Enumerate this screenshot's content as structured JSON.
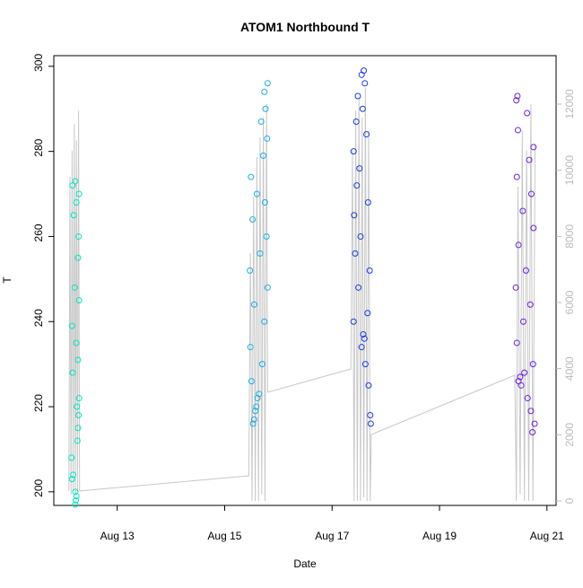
{
  "chart_data": {
    "type": "scatter",
    "title": "ATOM1 Northbound T",
    "x_label": "Date",
    "y_label": "T",
    "xlim": [
      11.82,
      21.17
    ],
    "xticks": [
      {
        "value": 13,
        "label": "Aug 13"
      },
      {
        "value": 15,
        "label": "Aug 15"
      },
      {
        "value": 17,
        "label": "Aug 17"
      },
      {
        "value": 19,
        "label": "Aug 19"
      },
      {
        "value": 21,
        "label": "Aug 21"
      }
    ],
    "ylim": [
      196.8,
      302.5
    ],
    "yticks": [
      200,
      220,
      240,
      260,
      280,
      300
    ],
    "y2lim": [
      -136,
      13466
    ],
    "y2ticks": [
      0,
      2000,
      4000,
      6000,
      8000,
      10000,
      12000
    ],
    "series": [
      {
        "color": "#00e6c0",
        "x": [
          12.22,
          12.23,
          12.24,
          12.22,
          12.16,
          12.18,
          12.15,
          12.26,
          12.27,
          12.28,
          12.25,
          12.29,
          12.17,
          12.27,
          12.24,
          12.16,
          12.29,
          12.21,
          12.27,
          12.28,
          12.19,
          12.24,
          12.29,
          12.17,
          12.22
        ],
        "values": [
          197,
          198,
          199,
          200,
          203,
          204,
          208,
          212,
          215,
          218,
          220,
          222,
          228,
          231,
          235,
          239,
          245,
          248,
          255,
          260,
          265,
          268,
          270,
          272,
          273
        ]
      },
      {
        "color": "#1aaee8",
        "x": [
          15.53,
          15.55,
          15.57,
          15.59,
          15.61,
          15.64,
          15.5,
          15.7,
          15.48,
          15.74,
          15.55,
          15.8,
          15.47,
          15.66,
          15.78,
          15.52,
          15.75,
          15.6,
          15.49,
          15.72,
          15.79,
          15.68,
          15.76,
          15.74,
          15.8
        ],
        "values": [
          216,
          217,
          219,
          220,
          222,
          223,
          226,
          230,
          234,
          240,
          244,
          248,
          252,
          256,
          260,
          264,
          268,
          270,
          274,
          279,
          283,
          287,
          290,
          294,
          296
        ]
      },
      {
        "color": "#1c3ae6",
        "x": [
          17.72,
          17.71,
          17.68,
          17.62,
          17.55,
          17.6,
          17.58,
          17.4,
          17.66,
          17.49,
          17.7,
          17.43,
          17.53,
          17.41,
          17.67,
          17.46,
          17.51,
          17.4,
          17.64,
          17.45,
          17.57,
          17.48,
          17.61,
          17.55,
          17.59
        ],
        "values": [
          216,
          218,
          225,
          230,
          234,
          236,
          237,
          240,
          242,
          248,
          252,
          256,
          260,
          265,
          268,
          272,
          276,
          280,
          284,
          287,
          290,
          293,
          296,
          298,
          299
        ]
      },
      {
        "color": "#6c1fe0",
        "x": [
          20.73,
          20.77,
          20.7,
          20.64,
          20.52,
          20.47,
          20.5,
          20.58,
          20.74,
          20.44,
          20.56,
          20.69,
          20.42,
          20.61,
          20.47,
          20.75,
          20.55,
          20.71,
          20.44,
          20.67,
          20.75,
          20.46,
          20.63,
          20.43,
          20.45
        ],
        "values": [
          214,
          216,
          219,
          222,
          225,
          226,
          227,
          228,
          230,
          235,
          240,
          244,
          248,
          252,
          258,
          262,
          266,
          270,
          274,
          278,
          281,
          285,
          289,
          292,
          293
        ]
      }
    ],
    "line": {
      "color": "#c8c8c8",
      "axis": "y2",
      "x": [
        12.1,
        12.12,
        12.14,
        12.16,
        12.18,
        12.2,
        12.22,
        12.24,
        12.26,
        12.28,
        12.3,
        15.45,
        15.48,
        15.51,
        15.54,
        15.57,
        15.6,
        15.63,
        15.66,
        15.69,
        15.72,
        15.75,
        15.78,
        15.8,
        17.35,
        17.38,
        17.41,
        17.44,
        17.47,
        17.5,
        17.53,
        17.56,
        17.59,
        17.62,
        17.65,
        17.68,
        17.71,
        17.73,
        20.4,
        20.43,
        20.46,
        20.5,
        20.54,
        20.58,
        20.62,
        20.66,
        20.7,
        20.74,
        20.78
      ],
      "values": [
        300,
        9800,
        200,
        10600,
        300,
        11400,
        200,
        10900,
        300,
        11800,
        300,
        760,
        7500,
        0,
        9200,
        0,
        10400,
        0,
        11000,
        200,
        11600,
        0,
        12000,
        3285,
        3990,
        10600,
        0,
        11800,
        0,
        12200,
        0,
        11600,
        100,
        12500,
        0,
        11200,
        0,
        2010,
        3800,
        0,
        9500,
        200,
        11200,
        0,
        10600,
        0,
        12000,
        0,
        10800
      ]
    }
  }
}
